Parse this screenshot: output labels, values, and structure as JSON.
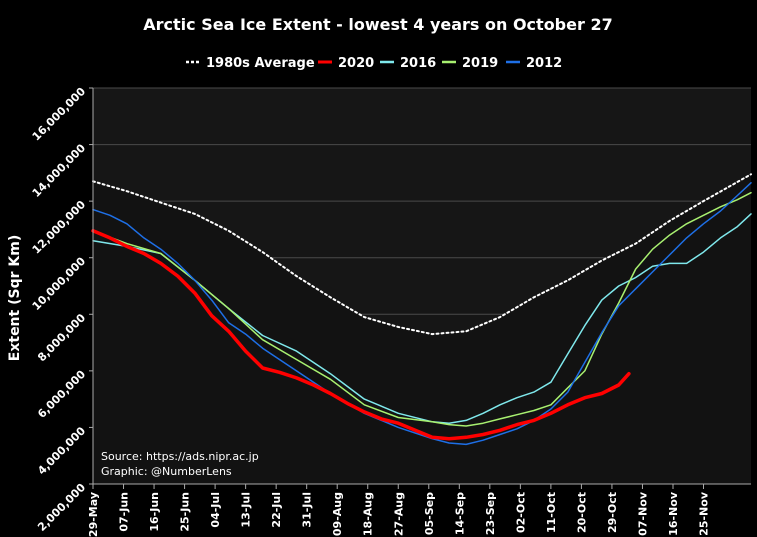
{
  "chart_data": {
    "type": "line",
    "title": "Arctic Sea Ice Extent - lowest 4 years on October 27",
    "ylabel": "Extent (Sqr Km)",
    "xlabel": "",
    "ylim": [
      2000000,
      16000000
    ],
    "yticks": [
      2000000,
      4000000,
      6000000,
      8000000,
      10000000,
      12000000,
      14000000,
      16000000
    ],
    "ytick_labels": [
      "2,000,000",
      "4,000,000",
      "6,000,000",
      "8,000,000",
      "10,000,000",
      "12,000,000",
      "14,000,000",
      "16,000,000"
    ],
    "xlim_days": [
      0,
      194
    ],
    "xticks_days": [
      0,
      9,
      18,
      27,
      36,
      45,
      54,
      63,
      72,
      81,
      90,
      99,
      108,
      117,
      126,
      135,
      144,
      153,
      162,
      171,
      180
    ],
    "xtick_labels": [
      "29-May",
      "07-Jun",
      "16-Jun",
      "25-Jun",
      "04-Jul",
      "13-Jul",
      "22-Jul",
      "31-Jul",
      "09-Aug",
      "18-Aug",
      "27-Aug",
      "05-Sep",
      "14-Sep",
      "23-Sep",
      "02-Oct",
      "11-Oct",
      "20-Oct",
      "29-Oct",
      "07-Nov",
      "16-Nov",
      "25-Nov"
    ],
    "x_unit": "days since 29-May",
    "grid": true,
    "legend_position": "top",
    "series": [
      {
        "name": "1980s Average",
        "color": "#ffffff",
        "style": "dotted",
        "x": [
          0,
          10,
          20,
          30,
          40,
          50,
          60,
          70,
          80,
          90,
          100,
          110,
          120,
          130,
          140,
          150,
          160,
          170,
          180,
          194
        ],
        "values": [
          12700000,
          12350000,
          11950000,
          11550000,
          10950000,
          10200000,
          9350000,
          8600000,
          7900000,
          7550000,
          7300000,
          7400000,
          7900000,
          8600000,
          9200000,
          9900000,
          10500000,
          11300000,
          12000000,
          12950000
        ]
      },
      {
        "name": "2020",
        "color": "#ff0000",
        "style": "thick",
        "x": [
          0,
          5,
          10,
          15,
          20,
          25,
          30,
          35,
          40,
          45,
          50,
          55,
          60,
          65,
          70,
          75,
          80,
          85,
          90,
          95,
          100,
          105,
          110,
          115,
          120,
          125,
          130,
          135,
          140,
          145,
          150,
          155,
          158
        ],
        "values": [
          10950000,
          10700000,
          10400000,
          10150000,
          9800000,
          9350000,
          8750000,
          7950000,
          7400000,
          6700000,
          6100000,
          5950000,
          5750000,
          5500000,
          5200000,
          4850000,
          4550000,
          4300000,
          4150000,
          3900000,
          3650000,
          3600000,
          3650000,
          3750000,
          3900000,
          4100000,
          4250000,
          4500000,
          4800000,
          5050000,
          5200000,
          5500000,
          5900000
        ]
      },
      {
        "name": "2016",
        "color": "#7fe8ec",
        "style": "solid",
        "x": [
          0,
          10,
          20,
          30,
          40,
          50,
          60,
          70,
          80,
          90,
          100,
          105,
          110,
          115,
          120,
          125,
          130,
          135,
          140,
          145,
          150,
          155,
          160,
          165,
          170,
          175,
          180,
          185,
          190,
          194
        ],
        "values": [
          10600000,
          10400000,
          10150000,
          9200000,
          8200000,
          7250000,
          6700000,
          5900000,
          5000000,
          4500000,
          4200000,
          4150000,
          4250000,
          4500000,
          4800000,
          5050000,
          5250000,
          5600000,
          6600000,
          7600000,
          8500000,
          9000000,
          9300000,
          9700000,
          9800000,
          9800000,
          10200000,
          10700000,
          11100000,
          11550000
        ]
      },
      {
        "name": "2019",
        "color": "#a8f070",
        "style": "solid",
        "x": [
          0,
          10,
          20,
          30,
          40,
          50,
          60,
          70,
          80,
          90,
          100,
          105,
          110,
          115,
          120,
          125,
          130,
          135,
          140,
          145,
          150,
          155,
          160,
          165,
          170,
          175,
          180,
          185,
          190,
          194
        ],
        "values": [
          10950000,
          10500000,
          10150000,
          9200000,
          8200000,
          7100000,
          6400000,
          5700000,
          4800000,
          4350000,
          4200000,
          4100000,
          4050000,
          4150000,
          4300000,
          4450000,
          4600000,
          4800000,
          5400000,
          6000000,
          7300000,
          8400000,
          9600000,
          10300000,
          10800000,
          11200000,
          11500000,
          11800000,
          12050000,
          12300000
        ]
      },
      {
        "name": "2012",
        "color": "#1e6fe6",
        "style": "solid",
        "x": [
          0,
          5,
          10,
          15,
          20,
          25,
          30,
          35,
          40,
          45,
          50,
          60,
          70,
          80,
          90,
          100,
          105,
          110,
          115,
          120,
          125,
          130,
          135,
          140,
          145,
          150,
          155,
          160,
          165,
          170,
          175,
          180,
          185,
          190,
          194
        ],
        "values": [
          11700000,
          11500000,
          11200000,
          10700000,
          10300000,
          9800000,
          9200000,
          8500000,
          7700000,
          7300000,
          6800000,
          6000000,
          5200000,
          4500000,
          4000000,
          3600000,
          3450000,
          3400000,
          3550000,
          3750000,
          3950000,
          4250000,
          4650000,
          5250000,
          6300000,
          7350000,
          8300000,
          8900000,
          9500000,
          10100000,
          10700000,
          11200000,
          11650000,
          12200000,
          12650000
        ]
      }
    ],
    "annotations": [
      "Source: https://ads.nipr.ac.jp",
      "Graphic: @NumberLens"
    ]
  }
}
